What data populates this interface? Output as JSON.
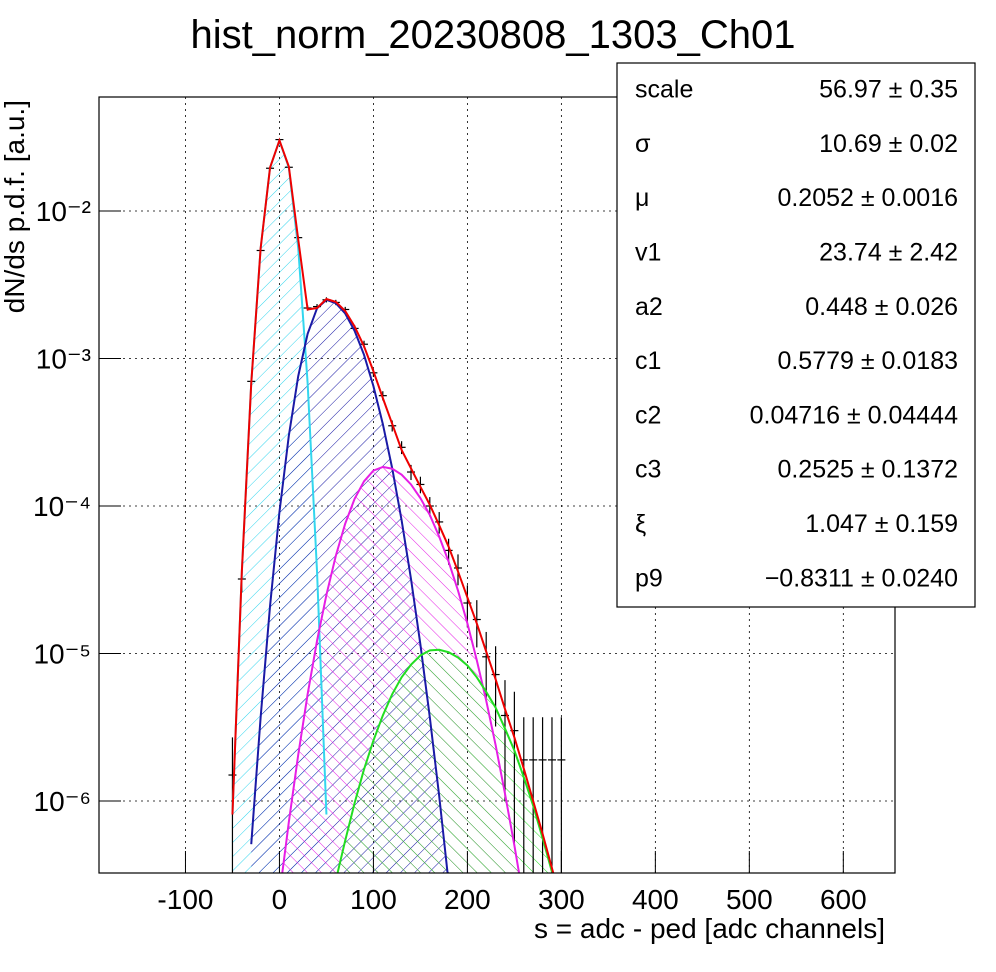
{
  "chart_data": {
    "type": "line",
    "title": "hist_norm_20230808_1303_Ch01",
    "x_label": "s = adc - ped [adc channels]",
    "y_label": "dN/ds p.d.f. [a.u.]",
    "xlim": [
      -192,
      655
    ],
    "ylim": [
      3.25e-07,
      0.0593
    ],
    "ylog": true,
    "grid": true,
    "xticks": [
      -100,
      0,
      100,
      200,
      300,
      400,
      500,
      600
    ],
    "yticks": [
      {
        "value": 0.01,
        "label": "10⁻²"
      },
      {
        "value": 0.001,
        "label": "10⁻³"
      },
      {
        "value": 0.0001,
        "label": "10⁻⁴"
      },
      {
        "value": 1e-05,
        "label": "10⁻⁵"
      },
      {
        "value": 1e-06,
        "label": "10⁻⁶"
      }
    ],
    "x": [
      -60,
      -50,
      -40,
      -30,
      -20,
      -10,
      0,
      10,
      20,
      30,
      40,
      50,
      60,
      70,
      80,
      90,
      100,
      110,
      120,
      130,
      140,
      150,
      160,
      170,
      180,
      190,
      200,
      210,
      220,
      230,
      240,
      250,
      260,
      270,
      280,
      290,
      300,
      310
    ],
    "series": [
      {
        "color": "#33d6ee",
        "fill": true,
        "values": [
          null,
          8.1e-07,
          3.6e-05,
          0.00068,
          0.0056,
          0.0197,
          0.03,
          0.0197,
          0.0056,
          0.00068,
          3.6e-05,
          8.1e-07,
          null,
          null,
          null,
          null,
          null,
          null,
          null,
          null,
          null,
          null,
          null,
          null,
          null,
          null,
          null,
          null,
          null,
          null,
          null,
          null,
          null,
          null,
          null,
          null,
          null,
          null
        ]
      },
      {
        "color": "#1a1aa6",
        "fill": true,
        "values": [
          null,
          null,
          null,
          5.1e-07,
          3.7e-06,
          2.1e-05,
          9.1e-05,
          0.0003,
          0.00076,
          0.00147,
          0.00219,
          0.0025,
          0.00237,
          0.00202,
          0.00154,
          0.00106,
          0.00065,
          0.00036,
          0.00018,
          8e-05,
          3.2e-05,
          1.15e-05,
          3.7e-06,
          1.08e-06,
          2.8e-07,
          null,
          null,
          null,
          null,
          null,
          null,
          null,
          null,
          null,
          null,
          null,
          null,
          null
        ]
      },
      {
        "color": "#e61ee6",
        "fill": true,
        "values": [
          null,
          null,
          null,
          null,
          null,
          null,
          2.3e-07,
          7.2e-07,
          2.06e-06,
          5.3e-06,
          1.22e-05,
          2.5e-05,
          4.6e-05,
          7.6e-05,
          0.000112,
          0.000147,
          0.000174,
          0.000184,
          0.000179,
          0.000163,
          0.00014,
          0.000113,
          8.7e-05,
          6.2e-05,
          4.2e-05,
          2.67e-05,
          1.6e-05,
          9e-06,
          4.8e-06,
          2.4e-06,
          1.12e-06,
          5e-07,
          2.1e-07,
          null,
          null,
          null,
          null,
          null
        ]
      },
      {
        "color": "#22dd22",
        "fill": true,
        "values": [
          null,
          null,
          null,
          null,
          null,
          null,
          null,
          null,
          null,
          null,
          null,
          null,
          2.9e-07,
          5.4e-07,
          9.7e-07,
          1.64e-06,
          2.57e-06,
          3.8e-06,
          5.3e-06,
          6.9e-06,
          8.4e-06,
          9.7e-06,
          1.05e-05,
          1.06e-05,
          1.02e-05,
          9.4e-06,
          8.3e-06,
          6.9e-06,
          5.5e-06,
          4.3e-06,
          3.1e-06,
          2.2e-06,
          1.45e-06,
          9.3e-07,
          5.6e-07,
          3.3e-07,
          null,
          null
        ]
      },
      {
        "color": "#000000",
        "values": [
          null,
          1.5e-06,
          3.2e-05,
          0.0007,
          0.0054,
          0.0195,
          0.0305,
          0.0198,
          0.0066,
          0.0022,
          0.00225,
          0.0025,
          0.0024,
          0.00215,
          0.0016,
          0.00125,
          0.0008,
          0.00056,
          0.00035,
          0.00025,
          0.00017,
          0.00014,
          0.0001,
          7.8e-05,
          5e-05,
          3.8e-05,
          2.2e-05,
          1.7e-05,
          9.5e-06,
          7.2e-06,
          3.8e-06,
          3e-06,
          1.9e-06,
          1.9e-06,
          1.9e-06,
          1.9e-06,
          1.9e-06,
          null
        ],
        "errors": [
          null,
          1.2e-06,
          6e-06,
          4e-05,
          0.00015,
          0.0003,
          0.0004,
          0.0003,
          0.00016,
          9e-05,
          9e-05,
          0.0001,
          0.0001,
          9e-05,
          8e-05,
          7e-05,
          5e-05,
          4e-05,
          3e-05,
          2.5e-05,
          2e-05,
          1.8e-05,
          1.5e-05,
          1.3e-05,
          1e-05,
          9e-06,
          7e-06,
          6e-06,
          4.5e-06,
          4e-06,
          2.8e-06,
          2.5e-06,
          1.8e-06,
          1.8e-06,
          1.8e-06,
          1.8e-06,
          1.8e-06,
          null
        ]
      },
      {
        "color": "#ee0000",
        "values": [
          null,
          8.1e-07,
          3.6e-05,
          0.00068,
          0.0056,
          0.0197,
          0.0301,
          0.02,
          0.0064,
          0.00215,
          0.0022,
          0.00253,
          0.00242,
          0.0021,
          0.00165,
          0.00121,
          0.00082,
          0.00054,
          0.00036,
          0.00024,
          0.00018,
          0.000135,
          0.000102,
          7.4e-05,
          5.3e-05,
          3.6e-05,
          2.4e-05,
          1.6e-05,
          1.03e-05,
          6.7e-06,
          4.2e-06,
          2.7e-06,
          1.66e-06,
          1e-06,
          6e-07,
          3.5e-07,
          2e-07,
          null
        ]
      }
    ],
    "stats": [
      {
        "name": "scale",
        "value": "56.97 ± 0.35"
      },
      {
        "name": "σ",
        "value": "10.69 ± 0.02"
      },
      {
        "name": "μ",
        "value": "0.2052 ± 0.0016"
      },
      {
        "name": "v1",
        "value": "23.74 ± 2.42"
      },
      {
        "name": "a2",
        "value": "0.448 ± 0.026"
      },
      {
        "name": "c1",
        "value": "0.5779 ± 0.0183"
      },
      {
        "name": "c2",
        "value": "0.04716 ± 0.04444"
      },
      {
        "name": "c3",
        "value": "0.2525 ± 0.1372"
      },
      {
        "name": "ξ",
        "value": "1.047 ± 0.159"
      },
      {
        "name": "p9",
        "value": "−0.8311 ± 0.0240"
      }
    ]
  }
}
